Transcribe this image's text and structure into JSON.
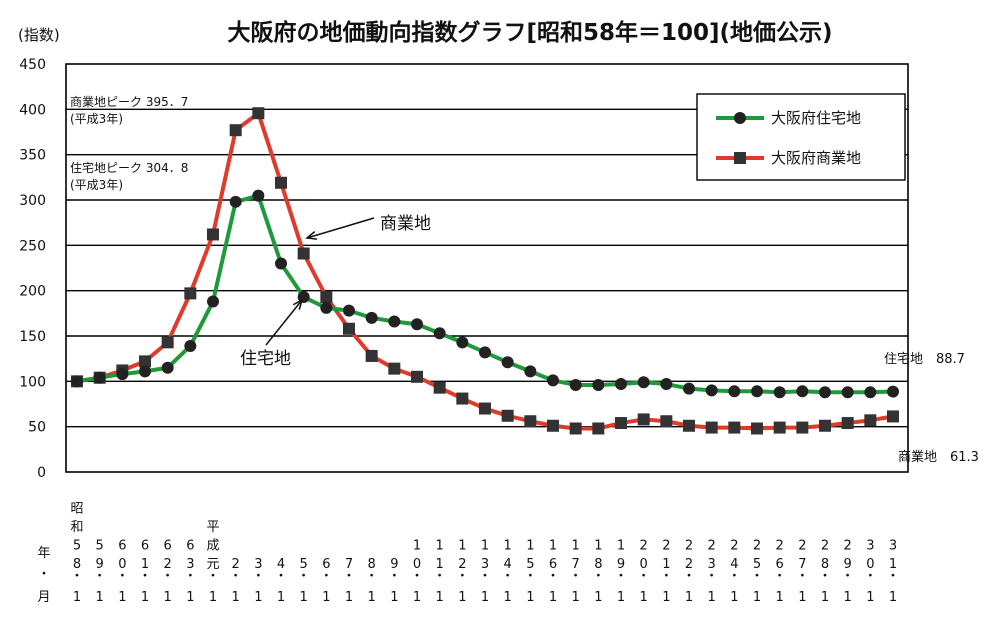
{
  "chart_data": {
    "type": "line",
    "title": "大阪府の地価動向指数グラフ[昭和58年＝100](地価公示)",
    "ylabel": "(指数)",
    "ylim": [
      0,
      450
    ],
    "yticks": [
      "0",
      "50",
      "100",
      "150",
      "200",
      "250",
      "300",
      "350",
      "400",
      "450"
    ],
    "grid": "horizontal",
    "legend_position": "top-right",
    "x_row_label": [
      "年",
      "・",
      "月"
    ],
    "x": [
      {
        "year": [
          "昭",
          "和",
          "5",
          "8"
        ],
        "month": "1"
      },
      {
        "year": [
          "5",
          "9"
        ],
        "month": "1"
      },
      {
        "year": [
          "6",
          "0"
        ],
        "month": "1"
      },
      {
        "year": [
          "6",
          "1"
        ],
        "month": "1"
      },
      {
        "year": [
          "6",
          "2"
        ],
        "month": "1"
      },
      {
        "year": [
          "6",
          "3"
        ],
        "month": "1"
      },
      {
        "year": [
          "平",
          "成",
          "元"
        ],
        "month": "1"
      },
      {
        "year": [
          "2"
        ],
        "month": "1"
      },
      {
        "year": [
          "3"
        ],
        "month": "1"
      },
      {
        "year": [
          "4"
        ],
        "month": "1"
      },
      {
        "year": [
          "5"
        ],
        "month": "1"
      },
      {
        "year": [
          "6"
        ],
        "month": "1"
      },
      {
        "year": [
          "7"
        ],
        "month": "1"
      },
      {
        "year": [
          "8"
        ],
        "month": "1"
      },
      {
        "year": [
          "9"
        ],
        "month": "1"
      },
      {
        "year": [
          "1",
          "0"
        ],
        "month": "1"
      },
      {
        "year": [
          "1",
          "1"
        ],
        "month": "1"
      },
      {
        "year": [
          "1",
          "2"
        ],
        "month": "1"
      },
      {
        "year": [
          "1",
          "3"
        ],
        "month": "1"
      },
      {
        "year": [
          "1",
          "4"
        ],
        "month": "1"
      },
      {
        "year": [
          "1",
          "5"
        ],
        "month": "1"
      },
      {
        "year": [
          "1",
          "6"
        ],
        "month": "1"
      },
      {
        "year": [
          "1",
          "7"
        ],
        "month": "1"
      },
      {
        "year": [
          "1",
          "8"
        ],
        "month": "1"
      },
      {
        "year": [
          "1",
          "9"
        ],
        "month": "1"
      },
      {
        "year": [
          "2",
          "0"
        ],
        "month": "1"
      },
      {
        "year": [
          "2",
          "1"
        ],
        "month": "1"
      },
      {
        "year": [
          "2",
          "2"
        ],
        "month": "1"
      },
      {
        "year": [
          "2",
          "3"
        ],
        "month": "1"
      },
      {
        "year": [
          "2",
          "4"
        ],
        "month": "1"
      },
      {
        "year": [
          "2",
          "5"
        ],
        "month": "1"
      },
      {
        "year": [
          "2",
          "6"
        ],
        "month": "1"
      },
      {
        "year": [
          "2",
          "7"
        ],
        "month": "1"
      },
      {
        "year": [
          "2",
          "8"
        ],
        "month": "1"
      },
      {
        "year": [
          "2",
          "9"
        ],
        "month": "1"
      },
      {
        "year": [
          "3",
          "0"
        ],
        "month": "1"
      },
      {
        "year": [
          "3",
          "1"
        ],
        "month": "1"
      }
    ],
    "series": [
      {
        "name": "大阪府住宅地",
        "color": "#1f9a3a",
        "marker": "circle",
        "values": [
          100,
          104,
          108,
          111,
          115,
          139,
          188,
          298,
          304.8,
          230,
          193,
          181,
          178,
          170,
          166,
          163,
          153,
          143,
          132,
          121,
          111,
          101,
          96,
          96,
          97,
          99,
          97,
          92,
          90,
          89,
          89,
          88,
          89,
          88,
          88,
          88,
          88.7
        ]
      },
      {
        "name": "大阪府商業地",
        "color": "#e03a2a",
        "marker": "square",
        "values": [
          100,
          104,
          112,
          122,
          143,
          197,
          262,
          377,
          395.7,
          319,
          241,
          193,
          158,
          128,
          114,
          105,
          93,
          81,
          70,
          62,
          56,
          51,
          48,
          48,
          54,
          58,
          56,
          51,
          49,
          49,
          48,
          49,
          49,
          51,
          54,
          57,
          61.3
        ]
      }
    ],
    "annotations": {
      "commercial_peak": [
        "商業地ピーク 395．7",
        "(平成3年)"
      ],
      "residential_peak": [
        "住宅地ピーク 304．8",
        "(平成3年)"
      ],
      "commercial_callout": "商業地",
      "residential_callout": "住宅地",
      "residential_end": "住宅地　88.7",
      "commercial_end": "商業地　61.3"
    }
  }
}
